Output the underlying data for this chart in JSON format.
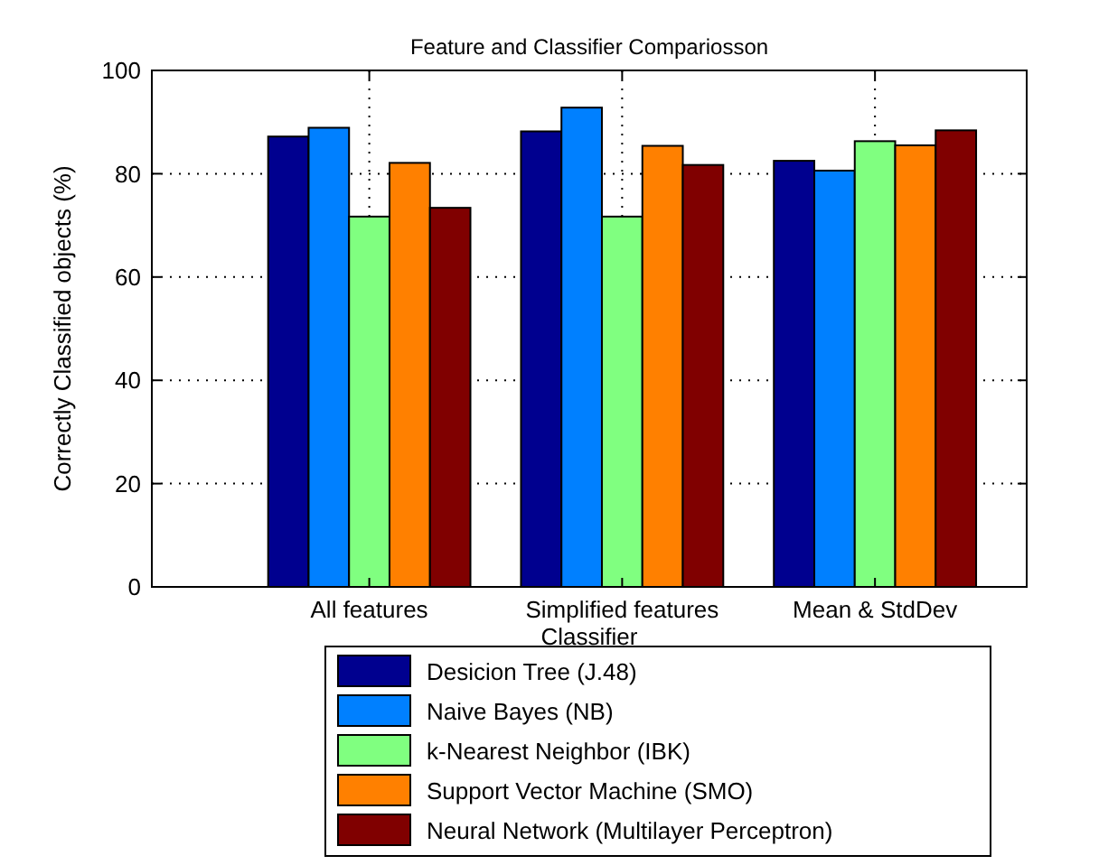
{
  "chart_data": {
    "type": "bar",
    "title": "Feature and Classifier Compariosson",
    "xlabel": "Classifier",
    "ylabel": "Correctly Classified objects (%)",
    "categories": [
      "All features",
      "Simplified features",
      "Mean & StdDev"
    ],
    "series": [
      {
        "name": "Desicion Tree (J.48)",
        "color": "#00008f",
        "values": [
          87.2,
          88.2,
          82.5
        ]
      },
      {
        "name": "Naive Bayes (NB)",
        "color": "#0080ff",
        "values": [
          88.9,
          92.8,
          80.6
        ]
      },
      {
        "name": "k-Nearest Neighbor (IBK)",
        "color": "#80ff80",
        "values": [
          71.7,
          71.7,
          86.3
        ]
      },
      {
        "name": "Support Vector Machine (SMO)",
        "color": "#ff8000",
        "values": [
          82.1,
          85.4,
          85.5
        ]
      },
      {
        "name": "Neural Network (Multilayer Perceptron)",
        "color": "#800000",
        "values": [
          73.4,
          81.7,
          88.4
        ]
      }
    ],
    "ylim": [
      0,
      100
    ],
    "yticks": [
      0,
      20,
      40,
      60,
      80,
      100
    ],
    "grid": true,
    "legend": "bottom"
  }
}
